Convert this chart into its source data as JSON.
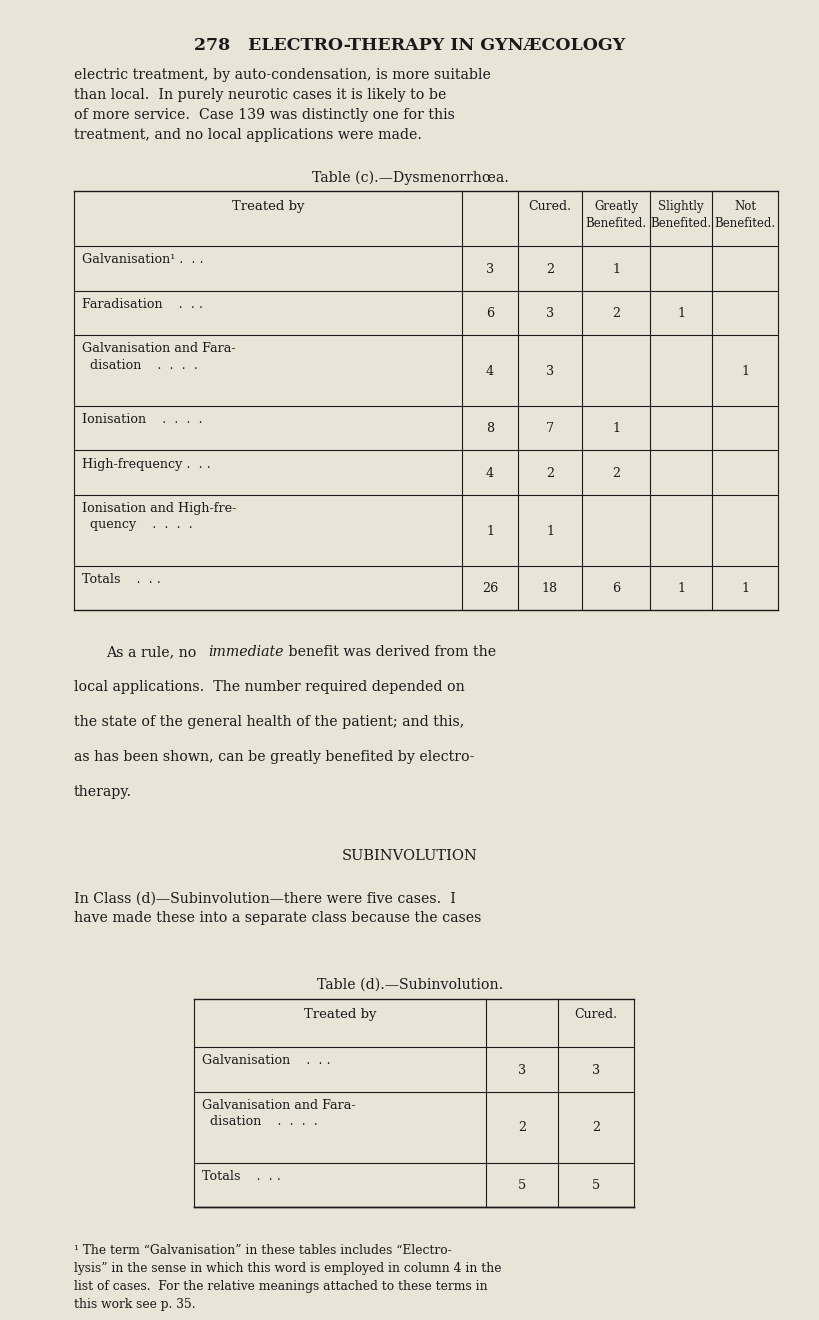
{
  "bg_color": "#e8e4d8",
  "text_color": "#1a1a1a",
  "page_width": 8.0,
  "page_height": 12.9,
  "header": "278   ELECTRO-THERAPY IN GYNÆCOLOGY",
  "para1": "electric treatment, by auto-condensation, is more suitable\nthan local.  In purely neurotic cases it is likely to be\nof more service.  Case 139 was distinctly one for this\ntreatment, and no local applications were made.",
  "table_c_title": "Table (c).—Dysmenorrhœa.",
  "table_c_totals": [
    "Totals    .  . .",
    "26",
    "18",
    "6",
    "1",
    "1"
  ],
  "subinv_heading": "Subinvolution",
  "para3": "In Class (d)—Subinvolution—there were five cases.  I\nhave made these into a separate class because the cases",
  "table_d_title": "Table (d).—Subinvolution.",
  "table_d_totals": [
    "Totals    .  . .",
    "5",
    "5"
  ],
  "footnote": "¹ The term “Galvanisation” in these tables includes “Electro-\nlysis” in the sense in which this word is employed in column 4 in the\nlist of cases.  For the relative meanings attached to these terms in\nthis work see p. 35."
}
